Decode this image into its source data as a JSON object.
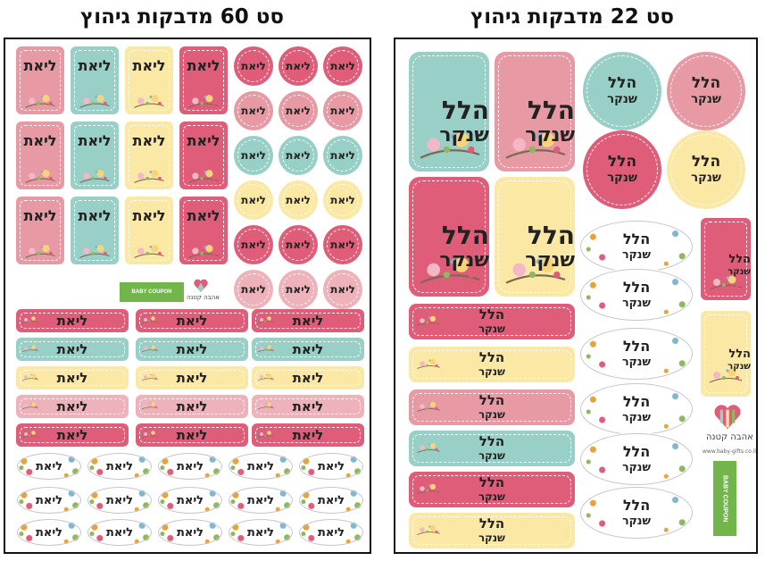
{
  "titles": {
    "left": "סט 60 מדבקות גיהוץ",
    "right": "סט 22 מדבקות גיהוץ"
  },
  "left_sheet": {
    "name_label": "ליאת",
    "brand_coupon": "BABY COUPON",
    "brand_logo": "אהבה קטנה"
  },
  "right_sheet": {
    "first_name": "הלל",
    "last_name": "שנקר",
    "brand_coupon": "BABY COUPON",
    "brand_logo": "אהבה קטנה",
    "brand_site": "www.baby-gifts.co.il"
  },
  "colors": {
    "pink": "#e79aa3",
    "teal": "#98cfc6",
    "yellow": "#fbe8a4",
    "red": "#df5d78",
    "light_pink": "#eeb2ba"
  }
}
